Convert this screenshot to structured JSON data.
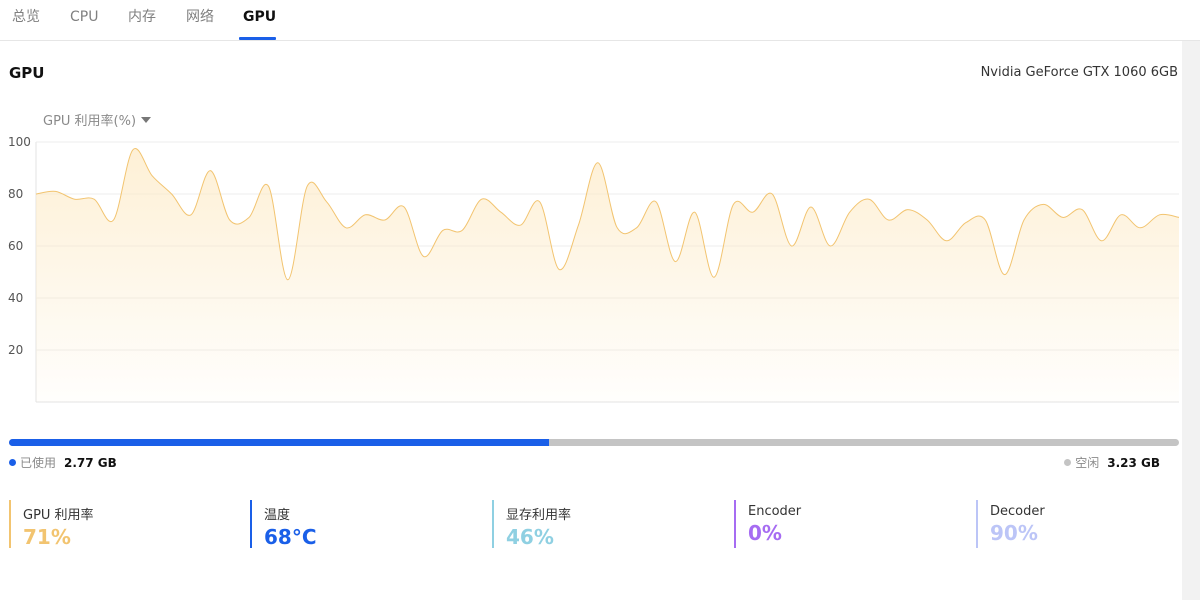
{
  "tabs": [
    {
      "label": "总览",
      "active": false
    },
    {
      "label": "CPU",
      "active": false
    },
    {
      "label": "内存",
      "active": false
    },
    {
      "label": "网络",
      "active": false
    },
    {
      "label": "GPU",
      "active": true
    }
  ],
  "header": {
    "title": "GPU",
    "gpu_model": "Nvidia GeForce GTX 1060 6GB"
  },
  "metric_selector": {
    "label": "GPU 利用率(%)"
  },
  "chart_data": {
    "type": "area",
    "title": "",
    "xlabel": "",
    "ylabel": "GPU 利用率(%)",
    "ylim": [
      0,
      100
    ],
    "yticks": [
      20,
      40,
      60,
      80,
      100
    ],
    "grid": true,
    "line_color": "#f2c470",
    "fill_color": "#fdebc8",
    "values": [
      80,
      81,
      78,
      78,
      70,
      97,
      87,
      80,
      72,
      89,
      70,
      71,
      83,
      47,
      83,
      77,
      67,
      72,
      70,
      75,
      56,
      66,
      66,
      78,
      73,
      68,
      77,
      51,
      68,
      92,
      67,
      67,
      77,
      54,
      73,
      48,
      76,
      73,
      80,
      60,
      75,
      60,
      73,
      78,
      70,
      74,
      70,
      62,
      69,
      70,
      49,
      70,
      76,
      71,
      74,
      62,
      72,
      67,
      72,
      71
    ]
  },
  "memory": {
    "used_fraction": 0.4616,
    "used_label": "已使用",
    "used_value": "2.77 GB",
    "free_label": "空闲",
    "free_value": "3.23 GB",
    "used_color": "#1a5fe8",
    "free_color": "#c4c4c4"
  },
  "stats": [
    {
      "label": "GPU 利用率",
      "value": "71%",
      "color": "#f2c470"
    },
    {
      "label": "温度",
      "value": "68°C",
      "color": "#1a5fe8"
    },
    {
      "label": "显存利用率",
      "value": "46%",
      "color": "#8fd0e2"
    },
    {
      "label": "Encoder",
      "value": "0%",
      "color": "#a66cf2"
    },
    {
      "label": "Decoder",
      "value": "90%",
      "color": "#bcc5f7"
    }
  ]
}
